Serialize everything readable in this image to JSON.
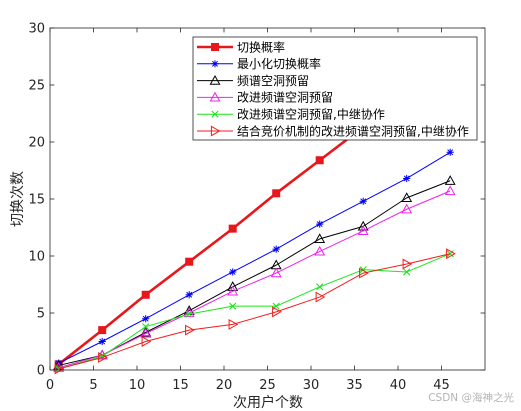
{
  "chart_data": {
    "type": "line",
    "xlabel": "次用户个数",
    "ylabel": "切换次数",
    "xlim": [
      0,
      50
    ],
    "ylim": [
      0,
      30
    ],
    "xticks": [
      0,
      5,
      10,
      15,
      20,
      25,
      30,
      35,
      40,
      45
    ],
    "yticks": [
      0,
      5,
      10,
      15,
      20,
      25,
      30
    ],
    "grid": false,
    "legend_position": "top-right",
    "series": [
      {
        "name": "切换概率",
        "color": "#e8171b",
        "marker": "square",
        "x": [
          1,
          6,
          11,
          16,
          21,
          26,
          31,
          36
        ],
        "y": [
          0.5,
          3.5,
          6.6,
          9.5,
          12.4,
          15.5,
          18.4,
          21.3
        ]
      },
      {
        "name": "最小化切换概率",
        "color": "#0000ff",
        "marker": "asterisk",
        "x": [
          1,
          6,
          11,
          16,
          21,
          26,
          31,
          36,
          41,
          46
        ],
        "y": [
          0.6,
          2.5,
          4.5,
          6.6,
          8.6,
          10.6,
          12.8,
          14.8,
          16.8,
          19.1
        ]
      },
      {
        "name": "频谱空洞预留",
        "color": "#000000",
        "marker": "triangle-up",
        "x": [
          1,
          6,
          11,
          16,
          21,
          26,
          31,
          36,
          41,
          46
        ],
        "y": [
          0.4,
          1.3,
          3.3,
          5.2,
          7.3,
          9.2,
          11.5,
          12.6,
          15.1,
          16.6
        ]
      },
      {
        "name": "改进频谱空洞预留",
        "color": "#f020f0",
        "marker": "triangle-up",
        "x": [
          1,
          6,
          11,
          16,
          21,
          26,
          31,
          36,
          41,
          46
        ],
        "y": [
          0.2,
          1.3,
          3.2,
          5.0,
          6.9,
          8.5,
          10.4,
          12.2,
          14.1,
          15.7
        ]
      },
      {
        "name": "改进频谱空洞预留,中继协作",
        "color": "#19e619",
        "marker": "x",
        "x": [
          1,
          6,
          11,
          16,
          21,
          26,
          31,
          36,
          41,
          46
        ],
        "y": [
          0.1,
          1.2,
          3.8,
          4.9,
          5.6,
          5.6,
          7.3,
          8.8,
          8.6,
          10.2
        ]
      },
      {
        "name": "结合竞价机制的改进频谱空洞预留,中继协作",
        "color": "#f21d1d",
        "marker": "triangle-right",
        "x": [
          1,
          6,
          11,
          16,
          21,
          26,
          31,
          36,
          41,
          46
        ],
        "y": [
          0.1,
          1.1,
          2.5,
          3.5,
          4.0,
          5.1,
          6.4,
          8.5,
          9.3,
          10.2
        ]
      }
    ]
  },
  "watermark": "CSDN @海神之光"
}
